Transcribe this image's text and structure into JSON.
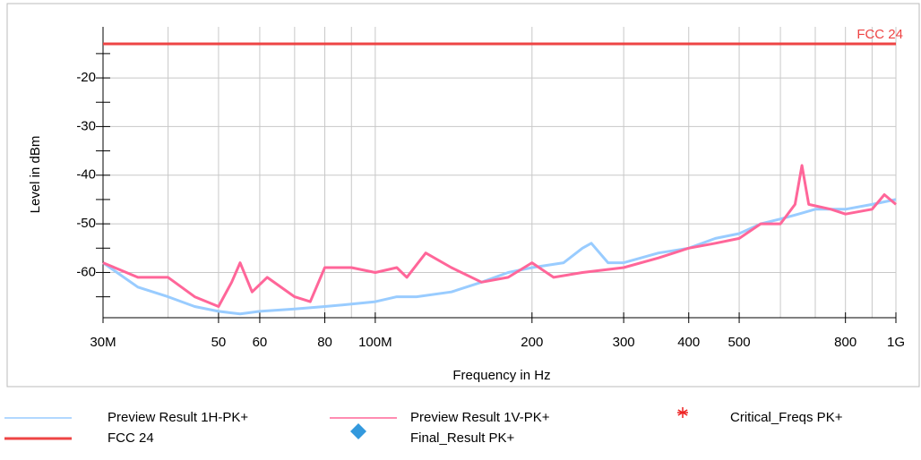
{
  "chart_data": {
    "type": "line",
    "y_label": "Level in dBm",
    "x_label": "Frequency in Hz",
    "log_x": true,
    "grid": true,
    "xlim": [
      30000000,
      1000000000
    ],
    "ylim": [
      -69.3,
      -9.5
    ],
    "xticks": [
      {
        "value": 30000000,
        "label": "30M"
      },
      {
        "value": 50000000,
        "label": "50"
      },
      {
        "value": 60000000,
        "label": "60"
      },
      {
        "value": 80000000,
        "label": "80"
      },
      {
        "value": 100000000,
        "label": "100M"
      },
      {
        "value": 200000000,
        "label": "200"
      },
      {
        "value": 300000000,
        "label": "300"
      },
      {
        "value": 400000000,
        "label": "400"
      },
      {
        "value": 500000000,
        "label": "500"
      },
      {
        "value": 800000000,
        "label": "800"
      },
      {
        "value": 1000000000,
        "label": "1G"
      }
    ],
    "xminorticks": [
      40000000,
      70000000,
      90000000,
      600000000,
      700000000,
      900000000
    ],
    "yticks": [
      -20,
      -30,
      -40,
      -50,
      -60
    ],
    "yminorticks": [
      -15,
      -25,
      -35,
      -45,
      -55,
      -65
    ],
    "series": [
      {
        "name": "Preview Result 1H-PK+",
        "color": "#99ccff",
        "x": [
          30000000,
          35000000,
          40000000,
          45000000,
          50000000,
          55000000,
          60000000,
          70000000,
          80000000,
          90000000,
          100000000,
          110000000,
          120000000,
          140000000,
          160000000,
          180000000,
          200000000,
          230000000,
          250000000,
          260000000,
          280000000,
          300000000,
          350000000,
          400000000,
          450000000,
          500000000,
          550000000,
          600000000,
          650000000,
          700000000,
          800000000,
          900000000,
          1000000000
        ],
        "values": [
          -58,
          -63,
          -65,
          -67,
          -68,
          -68.5,
          -68,
          -67.5,
          -67,
          -66.5,
          -66,
          -65,
          -65,
          -64,
          -62,
          -60,
          -59,
          -58,
          -55,
          -54,
          -58,
          -58,
          -56,
          -55,
          -53,
          -52,
          -50,
          -49,
          -48,
          -47,
          -47,
          -46,
          -45
        ]
      },
      {
        "name": "Preview Result 1V-PK+",
        "color": "#ff6699",
        "x": [
          30000000,
          35000000,
          40000000,
          45000000,
          50000000,
          53000000,
          55000000,
          58000000,
          62000000,
          70000000,
          75000000,
          80000000,
          90000000,
          100000000,
          110000000,
          115000000,
          125000000,
          140000000,
          160000000,
          180000000,
          200000000,
          220000000,
          250000000,
          300000000,
          350000000,
          400000000,
          450000000,
          500000000,
          550000000,
          600000000,
          640000000,
          660000000,
          680000000,
          750000000,
          800000000,
          900000000,
          950000000,
          1000000000
        ],
        "values": [
          -58,
          -61,
          -61,
          -65,
          -67,
          -62,
          -58,
          -64,
          -61,
          -65,
          -66,
          -59,
          -59,
          -60,
          -59,
          -61,
          -56,
          -59,
          -62,
          -61,
          -58,
          -61,
          -60,
          -59,
          -57,
          -55,
          -54,
          -53,
          -50,
          -50,
          -46,
          -38,
          -46,
          -47,
          -48,
          -47,
          -44,
          -46
        ]
      },
      {
        "name": "FCC 24",
        "color": "#ee4444",
        "x": [
          30000000,
          1000000000
        ],
        "values": [
          -13,
          -13
        ]
      }
    ],
    "markers": [
      {
        "name": "Critical_Freqs PK+",
        "color": "#ee2222",
        "symbol": "asterisk"
      },
      {
        "name": "Final_Result PK+",
        "color": "#3399dd",
        "symbol": "diamond"
      }
    ]
  }
}
